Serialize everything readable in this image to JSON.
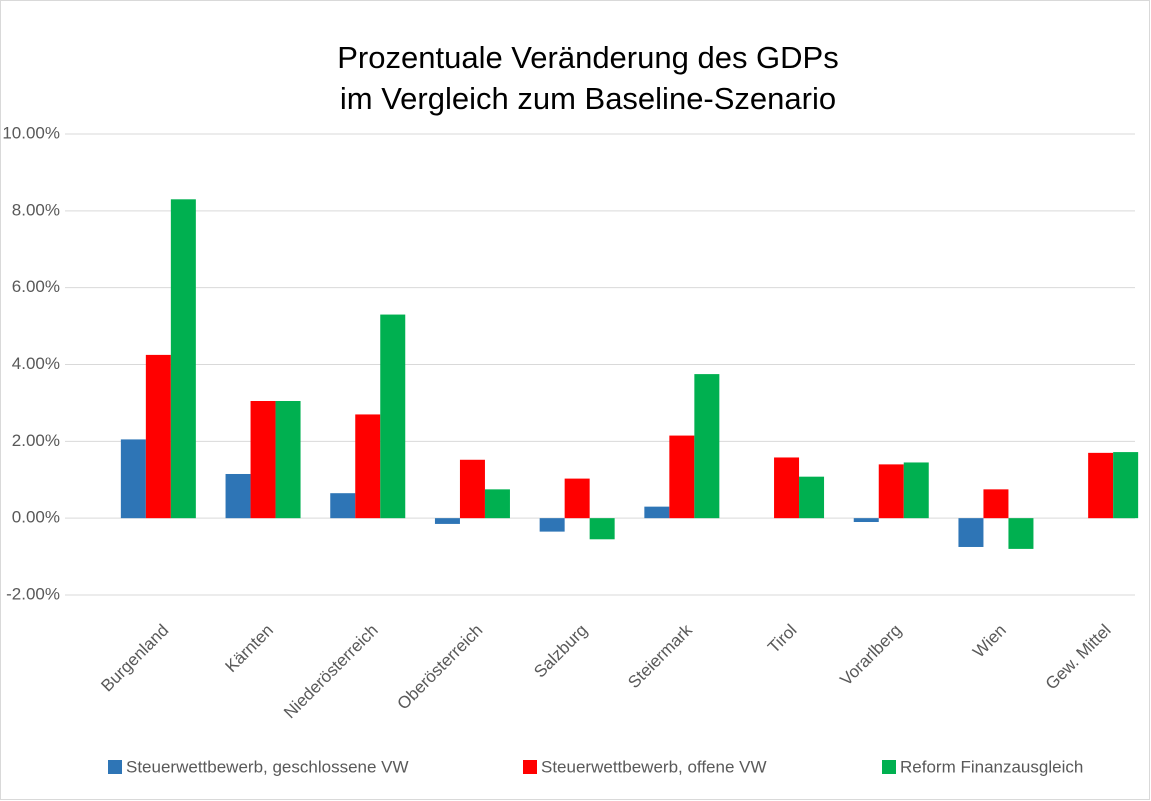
{
  "chart_data": {
    "type": "bar",
    "title": [
      "Prozentuale Veränderung des GDPs",
      "im Vergleich zum Baseline-Szenario"
    ],
    "categories": [
      "Burgenland",
      "Kärnten",
      "Niederösterreich",
      "Oberösterreich",
      "Salzburg",
      "Steiermark",
      "Tirol",
      "Vorarlberg",
      "Wien",
      "Gew. Mittel"
    ],
    "series": [
      {
        "name": "Steuerwettbewerb, geschlossene VW",
        "color": "#2e75b6",
        "values": [
          2.05,
          1.15,
          0.65,
          -0.15,
          -0.35,
          0.3,
          0,
          -0.1,
          -0.75,
          0
        ]
      },
      {
        "name": "Steuerwettbewerb, offene VW",
        "color": "#ff0000",
        "values": [
          4.25,
          3.05,
          2.7,
          1.52,
          1.03,
          2.15,
          1.58,
          1.4,
          0.75,
          1.7
        ]
      },
      {
        "name": "Reform Finanzausgleich",
        "color": "#00b050",
        "values": [
          8.3,
          3.05,
          5.3,
          0.75,
          -0.55,
          3.75,
          1.08,
          1.45,
          -0.8,
          1.72
        ]
      }
    ],
    "ylim": [
      -2,
      10
    ],
    "yticks": [
      {
        "value": -2,
        "label": "-2.00%"
      },
      {
        "value": 0,
        "label": "0.00%"
      },
      {
        "value": 2,
        "label": "2.00%"
      },
      {
        "value": 4,
        "label": "4.00%"
      },
      {
        "value": 6,
        "label": "6.00%"
      },
      {
        "value": 8,
        "label": "8.00%"
      },
      {
        "value": 10,
        "label": "10.00%"
      }
    ],
    "grid": true,
    "legend": "bottom"
  }
}
